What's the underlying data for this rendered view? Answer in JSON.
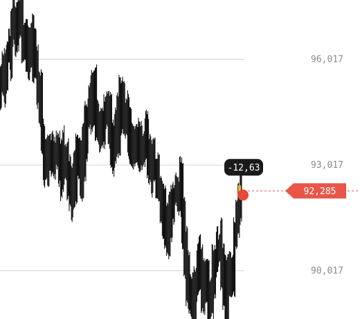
{
  "chart_data": {
    "type": "line",
    "style": "candlestick-like price bars",
    "y_tick_labels": [
      "96,017",
      "93,017",
      "90,017"
    ],
    "y_ticks": [
      96017,
      93017,
      90017
    ],
    "ylim": [
      88650,
      97700
    ],
    "grid": true,
    "current_price_label": "92,285",
    "current_price": 92285,
    "change_label": "-12,63",
    "colors": {
      "bars": "#111111",
      "grid": "#d4d4d4",
      "tick_text": "#8a8a8a",
      "accent": "#e8564a",
      "badge_bg": "#1a1a1a"
    },
    "series": [
      {
        "values": [
          95300,
          95550,
          95850,
          96100,
          96400,
          96900,
          97150,
          96800,
          97250,
          97350,
          96700,
          96250,
          96150,
          96050,
          96200,
          96300,
          95800,
          95400,
          94700,
          93900,
          93300,
          93350,
          93550,
          93400,
          93100,
          93250,
          93600,
          93100,
          92800,
          93350,
          93000,
          92600,
          92350,
          92300,
          92500,
          92900,
          93200,
          92850,
          93350,
          93850,
          94400,
          94700,
          95200,
          95000,
          94450,
          94250,
          94150,
          94350,
          94600,
          94600,
          94200,
          93850,
          93500,
          94050,
          94250,
          94800,
          94600,
          94500,
          94150,
          93850,
          93600,
          93350,
          93500,
          93700,
          93650,
          93550,
          93450,
          93600,
          93400,
          93250,
          93100,
          92900,
          92500,
          92400,
          91950,
          91400,
          91500,
          91300,
          91700,
          92000,
          92150,
          92300,
          92400,
          92200,
          91500,
          90700,
          89900,
          89400,
          89100,
          89050,
          89600,
          90400,
          89800,
          89200,
          89700,
          89350,
          89000,
          89500,
          90000,
          90300,
          90650,
          90700,
          89900,
          89600,
          89300,
          89700,
          90100,
          89700,
          91000,
          91650,
          92100,
          92285
        ]
      }
    ]
  }
}
